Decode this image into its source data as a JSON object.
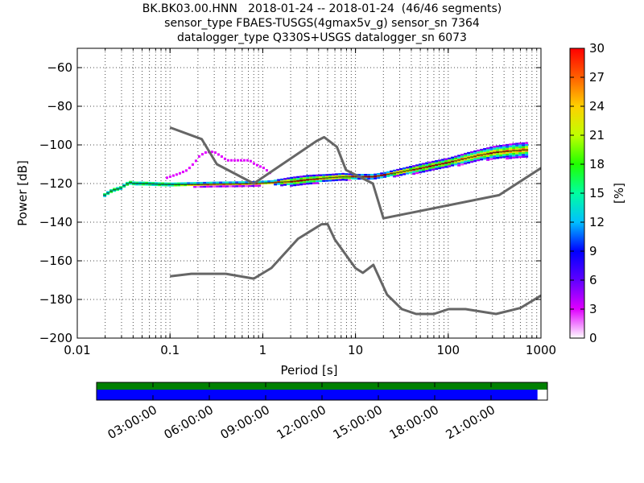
{
  "title_lines": [
    "BK.BK03.00.HNN   2018-01-24 -- 2018-01-24  (46/46 segments)",
    "sensor_type FBAES-TUSGS(4gmax5v_g) sensor_sn 7364",
    "datalogger_type Q330S+USGS datalogger_sn 6073"
  ],
  "chart_data": {
    "type": "heatmap",
    "xlabel": "Period [s]",
    "ylabel": "Power [dB]",
    "x_scale": "log",
    "xlim": [
      0.01,
      1000
    ],
    "ylim": [
      -200,
      -50
    ],
    "x_ticks": [
      {
        "value": 0.01,
        "label": "0.01"
      },
      {
        "value": 0.1,
        "label": "0.1"
      },
      {
        "value": 1,
        "label": "1"
      },
      {
        "value": 10,
        "label": "10"
      },
      {
        "value": 100,
        "label": "100"
      },
      {
        "value": 1000,
        "label": "1000"
      }
    ],
    "y_ticks": [
      {
        "value": -60,
        "label": "−60"
      },
      {
        "value": -80,
        "label": "−80"
      },
      {
        "value": -100,
        "label": "−100"
      },
      {
        "value": -120,
        "label": "−120"
      },
      {
        "value": -140,
        "label": "−140"
      },
      {
        "value": -160,
        "label": "−160"
      },
      {
        "value": -180,
        "label": "−180"
      },
      {
        "value": -200,
        "label": "−200"
      }
    ],
    "grid": "dotted",
    "colorbar": {
      "label": "[%]",
      "range": [
        0,
        30
      ],
      "ticks": [
        {
          "value": 30,
          "label": "30"
        },
        {
          "value": 27,
          "label": "27"
        },
        {
          "value": 24,
          "label": "24"
        },
        {
          "value": 21,
          "label": "21"
        },
        {
          "value": 18,
          "label": "18"
        },
        {
          "value": 15,
          "label": "15"
        },
        {
          "value": 12,
          "label": "12"
        },
        {
          "value": 9,
          "label": "9"
        },
        {
          "value": 6,
          "label": "6"
        },
        {
          "value": 3,
          "label": "3"
        },
        {
          "value": 0,
          "label": "0"
        }
      ]
    },
    "noise_models": [
      {
        "points": [
          [
            0.1,
            -91
          ],
          [
            0.22,
            -97
          ],
          [
            0.32,
            -110
          ],
          [
            0.8,
            -120
          ],
          [
            3.8,
            -98
          ],
          [
            4.6,
            -96
          ],
          [
            6.3,
            -101
          ],
          [
            7.9,
            -113
          ],
          [
            15.4,
            -120
          ],
          [
            20,
            -138
          ],
          [
            354,
            -126
          ],
          [
            1000,
            -112
          ]
        ]
      },
      {
        "points": [
          [
            0.1,
            -168
          ],
          [
            0.17,
            -166.7
          ],
          [
            0.4,
            -166.7
          ],
          [
            0.8,
            -169.2
          ],
          [
            1.24,
            -163.7
          ],
          [
            2.4,
            -148.6
          ],
          [
            4.3,
            -141.1
          ],
          [
            5,
            -141
          ],
          [
            6,
            -149
          ],
          [
            10,
            -163.8
          ],
          [
            12,
            -166.2
          ],
          [
            15.6,
            -162.1
          ],
          [
            21.9,
            -177.5
          ],
          [
            31.6,
            -185
          ],
          [
            45,
            -187.5
          ],
          [
            70,
            -187.5
          ],
          [
            101,
            -185
          ],
          [
            154,
            -185
          ],
          [
            328,
            -187.5
          ],
          [
            600,
            -184.4
          ],
          [
            1000,
            -178
          ]
        ]
      }
    ],
    "psd_band": {
      "periods": [
        0.019,
        0.022,
        0.025,
        0.028,
        0.031,
        0.035,
        0.04,
        0.05,
        0.07,
        0.1,
        0.15,
        0.2,
        0.3,
        0.5,
        0.8,
        1.2,
        2,
        3,
        5,
        7,
        10,
        15,
        20,
        30,
        50,
        70,
        100,
        150,
        200,
        300,
        500,
        700
      ],
      "center_db": [
        -126,
        -124,
        -123,
        -122.5,
        -121,
        -119.5,
        -120,
        -120,
        -120.3,
        -120.5,
        -120.5,
        -120.5,
        -120.3,
        -120.2,
        -120,
        -119.5,
        -119,
        -118,
        -117,
        -116.5,
        -116.5,
        -116.5,
        -115.5,
        -114,
        -112,
        -110.5,
        -109,
        -107,
        -105.5,
        -104,
        -103,
        -102.5
      ],
      "spread_db": [
        1,
        1,
        1,
        1,
        1,
        1,
        1,
        1,
        1,
        1,
        1.2,
        1.3,
        1.3,
        1.3,
        1.3,
        1.2,
        2.5,
        2.5,
        2,
        2,
        1.5,
        1.5,
        1.5,
        2,
        2.5,
        2.5,
        2.5,
        3,
        3,
        3.5,
        4,
        4
      ]
    },
    "outlier_arc": {
      "periods": [
        0.09,
        0.12,
        0.15,
        0.18,
        0.2,
        0.23,
        0.27,
        0.3,
        0.35,
        0.4,
        0.5,
        0.6,
        0.7,
        0.8,
        1,
        1.2
      ],
      "db": [
        -117,
        -115,
        -113,
        -109,
        -106,
        -104,
        -103.5,
        -104,
        -106,
        -108,
        -108,
        -108,
        -108,
        -110,
        -112,
        -115
      ]
    },
    "coverage_bar": {
      "total_color": "#008000",
      "data_color": "#0000ff",
      "data_fraction": 0.978
    },
    "time_ticks": [
      "03:00:00",
      "06:00:00",
      "09:00:00",
      "12:00:00",
      "15:00:00",
      "18:00:00",
      "21:00:00"
    ]
  }
}
